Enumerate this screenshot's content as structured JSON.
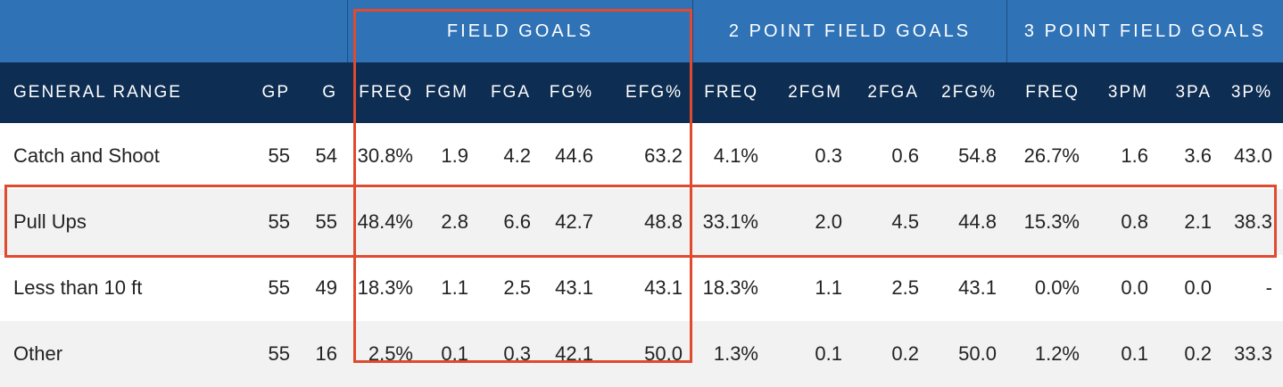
{
  "groups": [
    {
      "label": ""
    },
    {
      "label": "FIELD GOALS"
    },
    {
      "label": "2 POINT FIELD GOALS"
    },
    {
      "label": "3 POINT FIELD GOALS"
    }
  ],
  "columns": [
    "GENERAL RANGE",
    "GP",
    "G",
    "FREQ",
    "FGM",
    "FGA",
    "FG%",
    "EFG%",
    "FREQ",
    "2FGM",
    "2FGA",
    "2FG%",
    "FREQ",
    "3PM",
    "3PA",
    "3P%"
  ],
  "rows": [
    [
      "Catch and Shoot",
      "55",
      "54",
      "30.8%",
      "1.9",
      "4.2",
      "44.6",
      "63.2",
      "4.1%",
      "0.3",
      "0.6",
      "54.8",
      "26.7%",
      "1.6",
      "3.6",
      "43.0"
    ],
    [
      "Pull Ups",
      "55",
      "55",
      "48.4%",
      "2.8",
      "6.6",
      "42.7",
      "48.8",
      "33.1%",
      "2.0",
      "4.5",
      "44.8",
      "15.3%",
      "0.8",
      "2.1",
      "38.3"
    ],
    [
      "Less than 10 ft",
      "55",
      "49",
      "18.3%",
      "1.1",
      "2.5",
      "43.1",
      "43.1",
      "18.3%",
      "1.1",
      "2.5",
      "43.1",
      "0.0%",
      "0.0",
      "0.0",
      "-"
    ],
    [
      "Other",
      "55",
      "16",
      "2.5%",
      "0.1",
      "0.3",
      "42.1",
      "50.0",
      "1.3%",
      "0.1",
      "0.2",
      "50.0",
      "1.2%",
      "0.1",
      "0.2",
      "33.3"
    ]
  ],
  "colors": {
    "group_header_bg": "#2f72b6",
    "column_header_bg": "#0e2d52",
    "alt_row_bg": "#f2f2f2",
    "highlight": "#e04a2f"
  }
}
